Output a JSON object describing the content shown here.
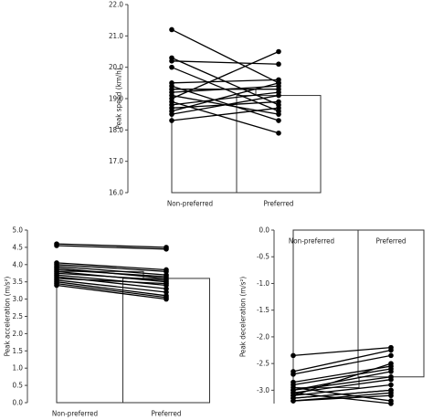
{
  "chart_data": [
    {
      "type": "bar",
      "y_label": "Peak speed (km/h)",
      "categories": [
        "Non-preferred",
        "Preferred"
      ],
      "values": [
        19.3,
        19.1
      ],
      "ylim": [
        16,
        22
      ],
      "yticks": [
        {
          "value": 16,
          "label": "16.0"
        },
        {
          "value": 17,
          "label": "17.0"
        },
        {
          "value": 18,
          "label": "18.0"
        },
        {
          "value": 19,
          "label": "19.0"
        },
        {
          "value": 20,
          "label": "20.0"
        },
        {
          "value": 21,
          "label": "21.0"
        },
        {
          "value": 22,
          "label": "22.0"
        }
      ],
      "pairs": [
        [
          21.2,
          19.5
        ],
        [
          20.3,
          18.8
        ],
        [
          20.2,
          20.1
        ],
        [
          20.0,
          18.6
        ],
        [
          19.5,
          19.6
        ],
        [
          19.3,
          19.3
        ],
        [
          19.2,
          19.4
        ],
        [
          19.1,
          18.5
        ],
        [
          19.0,
          20.5
        ],
        [
          18.9,
          17.9
        ],
        [
          18.8,
          19.2
        ],
        [
          18.7,
          18.9
        ],
        [
          18.5,
          19.1
        ],
        [
          18.3,
          18.7
        ],
        [
          19.4,
          18.3
        ],
        [
          18.6,
          19.5
        ]
      ],
      "color": "#000000"
    },
    {
      "type": "bar",
      "y_label": "Peak acceleration (m/s²)",
      "categories": [
        "Non-preferred",
        "Preferred"
      ],
      "values": [
        3.8,
        3.6
      ],
      "ylim": [
        0,
        5
      ],
      "yticks": [
        {
          "value": 0,
          "label": "0.0"
        },
        0.5,
        {
          "value": 1,
          "label": "1.0"
        },
        1.5,
        {
          "value": 2,
          "label": "2.0"
        },
        2.5,
        {
          "value": 3,
          "label": "3.0"
        },
        3.5,
        {
          "value": 4,
          "label": "4.0"
        },
        4.5,
        {
          "value": 5,
          "label": "5.0"
        }
      ],
      "pairs": [
        [
          4.6,
          4.5
        ],
        [
          4.55,
          4.45
        ],
        [
          4.05,
          3.85
        ],
        [
          4.0,
          3.8
        ],
        [
          3.95,
          3.7
        ],
        [
          3.9,
          3.6
        ],
        [
          3.85,
          3.65
        ],
        [
          3.8,
          3.5
        ],
        [
          3.75,
          3.55
        ],
        [
          3.7,
          3.4
        ],
        [
          3.65,
          3.3
        ],
        [
          3.6,
          3.45
        ],
        [
          3.55,
          3.2
        ],
        [
          3.5,
          3.1
        ],
        [
          3.45,
          3.05
        ],
        [
          3.4,
          3.0
        ]
      ],
      "color": "#000000"
    },
    {
      "type": "bar",
      "y_label": "Peak deceleration (m/s²)",
      "categories": [
        "Non-preferred",
        "Preferred"
      ],
      "values": [
        -2.95,
        -2.75
      ],
      "ylim": [
        -3.25,
        0
      ],
      "yticks": [
        {
          "value": 0,
          "label": "0.0"
        },
        -0.5,
        {
          "value": -1,
          "label": "-1.0"
        },
        -1.5,
        {
          "value": -2,
          "label": "-2.0"
        },
        -2.5,
        {
          "value": -3,
          "label": "-3.0"
        }
      ],
      "pairs": [
        [
          -2.35,
          -2.2
        ],
        [
          -2.65,
          -2.25
        ],
        [
          -2.7,
          -2.35
        ],
        [
          -2.85,
          -2.55
        ],
        [
          -2.9,
          -2.6
        ],
        [
          -3.0,
          -2.75
        ],
        [
          -3.05,
          -2.8
        ],
        [
          -3.1,
          -2.9
        ],
        [
          -3.15,
          -3.0
        ],
        [
          -3.2,
          -3.05
        ],
        [
          -3.2,
          -3.1
        ],
        [
          -3.1,
          -2.5
        ],
        [
          -3.0,
          -2.65
        ],
        [
          -2.95,
          -3.2
        ],
        [
          -3.05,
          -3.25
        ],
        [
          -3.15,
          -3.0
        ]
      ],
      "color": "#000000"
    }
  ]
}
